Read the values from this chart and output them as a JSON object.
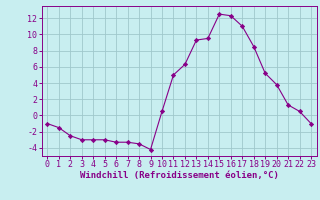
{
  "x": [
    0,
    1,
    2,
    3,
    4,
    5,
    6,
    7,
    8,
    9,
    10,
    11,
    12,
    13,
    14,
    15,
    16,
    17,
    18,
    19,
    20,
    21,
    22,
    23
  ],
  "y": [
    -1.0,
    -1.5,
    -2.5,
    -3.0,
    -3.0,
    -3.0,
    -3.3,
    -3.3,
    -3.5,
    -4.2,
    0.5,
    5.0,
    6.3,
    9.3,
    9.5,
    12.5,
    12.3,
    11.0,
    8.5,
    5.2,
    3.8,
    1.3,
    0.5,
    -1.0
  ],
  "line_color": "#880088",
  "marker": "D",
  "marker_size": 2.2,
  "bg_color": "#c8eef0",
  "grid_color": "#a0c8cc",
  "xlabel": "Windchill (Refroidissement éolien,°C)",
  "xlim": [
    -0.5,
    23.5
  ],
  "ylim": [
    -5,
    13.5
  ],
  "yticks": [
    -4,
    -2,
    0,
    2,
    4,
    6,
    8,
    10,
    12
  ],
  "xticks": [
    0,
    1,
    2,
    3,
    4,
    5,
    6,
    7,
    8,
    9,
    10,
    11,
    12,
    13,
    14,
    15,
    16,
    17,
    18,
    19,
    20,
    21,
    22,
    23
  ],
  "tick_color": "#880088",
  "label_color": "#880088",
  "font_size": 6.0,
  "xlabel_font_size": 6.5,
  "lw": 0.8
}
